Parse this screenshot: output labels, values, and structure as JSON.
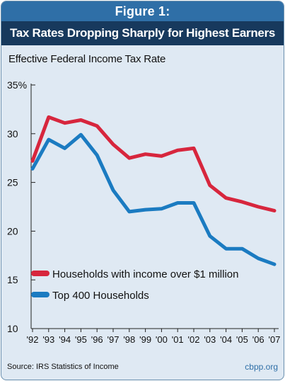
{
  "figure": {
    "number": "Figure 1:",
    "title": "Tax Rates Dropping Sharply for Highest Earners",
    "source": "Source: IRS Statistics of Income",
    "credit": "cbpp.org"
  },
  "chart_data": {
    "type": "line",
    "title": "Tax Rates Dropping Sharply for Highest Earners",
    "ylabel": "Effective Federal Income Tax Rate",
    "xlabel": "",
    "categories": [
      "'92",
      "'93",
      "'94",
      "'95",
      "'96",
      "'97",
      "'98",
      "'99",
      "'00",
      "'01",
      "'02",
      "'03",
      "'04",
      "'05",
      "'06",
      "'07"
    ],
    "yticks": [
      "35%",
      "30",
      "25",
      "20",
      "15",
      "10"
    ],
    "ylim": [
      10,
      35
    ],
    "grid": false,
    "legend_position": "bottom-left",
    "series": [
      {
        "name": "Households with income over $1 million",
        "color": "#d7263d",
        "values": [
          27.2,
          31.7,
          31.1,
          31.4,
          30.8,
          28.9,
          27.5,
          27.9,
          27.7,
          28.3,
          28.5,
          24.7,
          23.4,
          23.0,
          22.5,
          22.1
        ]
      },
      {
        "name": "Top 400 Households",
        "color": "#1b7bc1",
        "values": [
          26.4,
          29.4,
          28.5,
          29.9,
          27.8,
          24.2,
          22.0,
          22.2,
          22.3,
          22.9,
          22.9,
          19.5,
          18.2,
          18.2,
          17.2,
          16.6
        ]
      }
    ]
  }
}
